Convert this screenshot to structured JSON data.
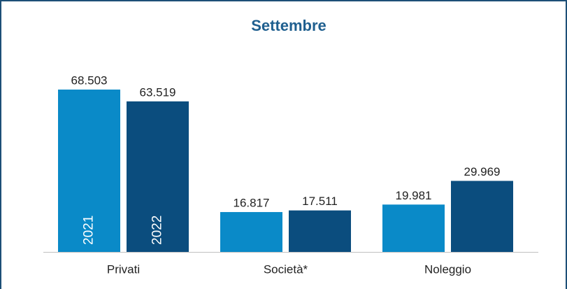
{
  "chart_data": {
    "type": "bar",
    "title": "Settembre",
    "categories": [
      "Privati",
      "Società*",
      "Noleggio"
    ],
    "series": [
      {
        "name": "2021",
        "color": "#0a8ac8",
        "values": [
          68503,
          16817,
          19981
        ],
        "value_labels": [
          "68.503",
          "16.817",
          "19.981"
        ]
      },
      {
        "name": "2022",
        "color": "#0b4d7e",
        "values": [
          63519,
          17511,
          29969
        ],
        "value_labels": [
          "63.519",
          "17.511",
          "29.969"
        ]
      }
    ]
  }
}
